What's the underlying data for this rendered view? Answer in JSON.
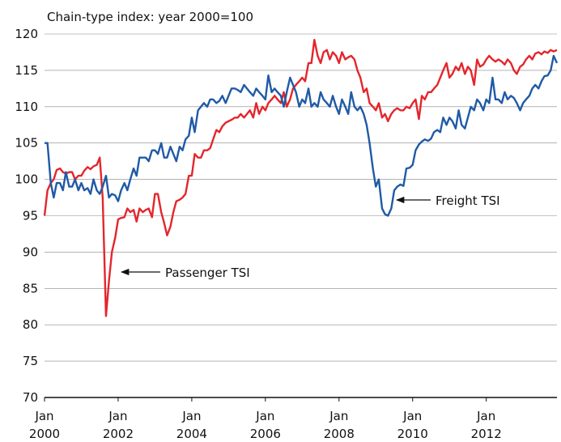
{
  "chart_data": {
    "type": "line",
    "axis_title": "Chain-type index: year 2000=100",
    "x": [
      2000,
      2000.08,
      2000.17,
      2000.25,
      2000.33,
      2000.42,
      2000.5,
      2000.58,
      2000.67,
      2000.75,
      2000.83,
      2000.92,
      2001,
      2001.08,
      2001.17,
      2001.25,
      2001.33,
      2001.42,
      2001.5,
      2001.58,
      2001.67,
      2001.75,
      2001.83,
      2001.92,
      2002,
      2002.08,
      2002.17,
      2002.25,
      2002.33,
      2002.42,
      2002.5,
      2002.58,
      2002.67,
      2002.75,
      2002.83,
      2002.92,
      2003,
      2003.08,
      2003.17,
      2003.25,
      2003.33,
      2003.42,
      2003.5,
      2003.58,
      2003.67,
      2003.75,
      2003.83,
      2003.92,
      2004,
      2004.08,
      2004.17,
      2004.25,
      2004.33,
      2004.42,
      2004.5,
      2004.58,
      2004.67,
      2004.75,
      2004.83,
      2004.92,
      2005,
      2005.08,
      2005.17,
      2005.25,
      2005.33,
      2005.42,
      2005.5,
      2005.58,
      2005.67,
      2005.75,
      2005.83,
      2005.92,
      2006,
      2006.08,
      2006.17,
      2006.25,
      2006.33,
      2006.42,
      2006.5,
      2006.58,
      2006.67,
      2006.75,
      2006.83,
      2006.92,
      2007,
      2007.08,
      2007.17,
      2007.25,
      2007.33,
      2007.42,
      2007.5,
      2007.58,
      2007.67,
      2007.75,
      2007.83,
      2007.92,
      2008,
      2008.08,
      2008.17,
      2008.25,
      2008.33,
      2008.42,
      2008.5,
      2008.58,
      2008.67,
      2008.75,
      2008.83,
      2008.92,
      2009,
      2009.08,
      2009.17,
      2009.25,
      2009.33,
      2009.42,
      2009.5,
      2009.58,
      2009.67,
      2009.75,
      2009.83,
      2009.92,
      2010,
      2010.08,
      2010.17,
      2010.25,
      2010.33,
      2010.42,
      2010.5,
      2010.58,
      2010.67,
      2010.75,
      2010.83,
      2010.92,
      2011,
      2011.08,
      2011.17,
      2011.25,
      2011.33,
      2011.42,
      2011.5,
      2011.58,
      2011.67,
      2011.75,
      2011.83,
      2011.92,
      2012,
      2012.08,
      2012.17,
      2012.25,
      2012.33,
      2012.42,
      2012.5,
      2012.58,
      2012.67,
      2012.75,
      2012.83,
      2012.92,
      2013,
      2013.08,
      2013.17,
      2013.25,
      2013.33,
      2013.42,
      2013.5,
      2013.58,
      2013.67,
      2013.75,
      2013.83,
      2013.92
    ],
    "series": [
      {
        "name": "Passenger TSI",
        "color": "#e3262c",
        "values": [
          95,
          98.5,
          99.5,
          100,
          101.3,
          101.5,
          101,
          100.8,
          101,
          101,
          100,
          100.5,
          100.5,
          101.2,
          101.7,
          101.4,
          101.8,
          102,
          103,
          97.5,
          81.2,
          86,
          90,
          92,
          94.5,
          94.7,
          94.8,
          96,
          95.5,
          95.8,
          94.2,
          96,
          95.5,
          95.8,
          96,
          94.8,
          98,
          98,
          95.5,
          94,
          92.3,
          93.5,
          95.5,
          97,
          97.2,
          97.5,
          98,
          100.5,
          100.5,
          103.5,
          103,
          103,
          104,
          104,
          104.3,
          105.5,
          106.8,
          106.5,
          107.3,
          107.8,
          108,
          108.2,
          108.5,
          108.5,
          109,
          108.5,
          109,
          109.5,
          108.5,
          110.5,
          109,
          110,
          109.5,
          110.5,
          111,
          111.5,
          111,
          110.5,
          112,
          110,
          111,
          112.5,
          113,
          113.5,
          114,
          113.5,
          116,
          116,
          119.2,
          117,
          116,
          117.5,
          117.8,
          116.5,
          117.5,
          117,
          116,
          117.5,
          116.5,
          116.8,
          117,
          116.5,
          115,
          114,
          112,
          112.5,
          110.5,
          110,
          109.5,
          110.5,
          108.5,
          109,
          108,
          109,
          109.5,
          109.8,
          109.5,
          109.5,
          110,
          109.8,
          110.5,
          111,
          108.3,
          111.5,
          111,
          112,
          112,
          112.5,
          113,
          114,
          115,
          116,
          114,
          114.5,
          115.5,
          115,
          116,
          114.5,
          115.5,
          115,
          113,
          116.5,
          115.5,
          115.8,
          116.5,
          117,
          116.5,
          116.2,
          116.5,
          116.2,
          115.8,
          116.5,
          116,
          115,
          114.5,
          115.5,
          115.8,
          116.5,
          117,
          116.5,
          117.3,
          117.5,
          117.2,
          117.6,
          117.4,
          117.8,
          117.6,
          117.8
        ]
      },
      {
        "name": "Freight TSI",
        "color": "#1f5aa6",
        "values": [
          105,
          105,
          99.5,
          97.5,
          99.5,
          99.5,
          98.5,
          101,
          99,
          99,
          100,
          98.5,
          99.5,
          98.5,
          98.8,
          98,
          100,
          98.5,
          98,
          99,
          100.5,
          97.5,
          98,
          97.8,
          97,
          98.5,
          99.5,
          98.5,
          100,
          101.5,
          100.5,
          103,
          103,
          103,
          102.5,
          104,
          104,
          103.5,
          105,
          103,
          103,
          104.5,
          103.5,
          102.5,
          104.5,
          104,
          105.5,
          106,
          108.5,
          106.5,
          109.5,
          110,
          110.5,
          110,
          111,
          111,
          110.5,
          110.8,
          111.5,
          110.5,
          111.5,
          112.5,
          112.5,
          112.3,
          112,
          113,
          112.5,
          112,
          111.5,
          112.5,
          112,
          111.5,
          111,
          114.3,
          112,
          112.5,
          112,
          111.5,
          110,
          112,
          114,
          113,
          112,
          110,
          111,
          110.5,
          112.5,
          110,
          110.5,
          110,
          112,
          111,
          110.5,
          110,
          111.5,
          110,
          109,
          111,
          110,
          109,
          112,
          110,
          109.5,
          110,
          109,
          107.5,
          105,
          101.5,
          99,
          100,
          96,
          95.2,
          95,
          96,
          98.5,
          99,
          99.3,
          99.1,
          101.5,
          101.6,
          102,
          104,
          104.8,
          105.2,
          105.5,
          105.3,
          105.6,
          106.5,
          106.8,
          106.5,
          108.5,
          107.5,
          108.5,
          108,
          107,
          109.5,
          107.5,
          107,
          108.5,
          110,
          109.5,
          111,
          110.5,
          109.5,
          111,
          110.5,
          114,
          111,
          111,
          110.5,
          112,
          111,
          111.5,
          111.2,
          110.5,
          109.5,
          110.5,
          111,
          111.5,
          112.5,
          113,
          112.5,
          113.5,
          114.2,
          114.3,
          115,
          117,
          116
        ]
      }
    ],
    "xlim": [
      2000,
      2013.92
    ],
    "xticks": [
      {
        "value": 2000,
        "label": "Jan 2000"
      },
      {
        "value": 2002,
        "label": "Jan 2002"
      },
      {
        "value": 2004,
        "label": "Jan 2004"
      },
      {
        "value": 2006,
        "label": "Jan 2006"
      },
      {
        "value": 2008,
        "label": "Jan 2008"
      },
      {
        "value": 2010,
        "label": "Jan 2010"
      },
      {
        "value": 2012,
        "label": "Jan 2012"
      }
    ],
    "ylim": [
      70,
      120
    ],
    "yticks": [
      70,
      75,
      80,
      85,
      90,
      95,
      100,
      105,
      110,
      115,
      120
    ],
    "grid": true
  }
}
